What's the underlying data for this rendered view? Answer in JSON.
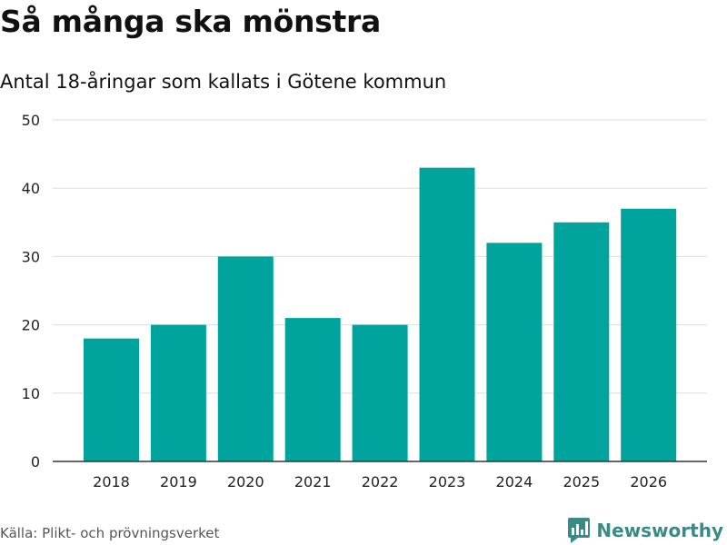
{
  "header": {
    "title": "Så många ska mönstra",
    "subtitle": "Antal 18-åringar som kallats i Götene kommun"
  },
  "footer": {
    "source": "Källa: Plikt- och prövningsverket",
    "brand": "Newsworthy",
    "brand_icon": "bar-chart-speech-bubble-icon"
  },
  "colors": {
    "bar": "#01a49c",
    "brand": "#3a8a86"
  },
  "chart_data": {
    "type": "bar",
    "title": "Så många ska mönstra",
    "subtitle": "Antal 18-åringar som kallats i Götene kommun",
    "xlabel": "",
    "ylabel": "",
    "categories": [
      "2018",
      "2019",
      "2020",
      "2021",
      "2022",
      "2023",
      "2024",
      "2025",
      "2026"
    ],
    "values": [
      18,
      20,
      30,
      21,
      20,
      43,
      32,
      35,
      37
    ],
    "ylim": [
      0,
      50
    ],
    "yticks": [
      0,
      10,
      20,
      30,
      40,
      50
    ],
    "grid": true,
    "legend": "none"
  }
}
